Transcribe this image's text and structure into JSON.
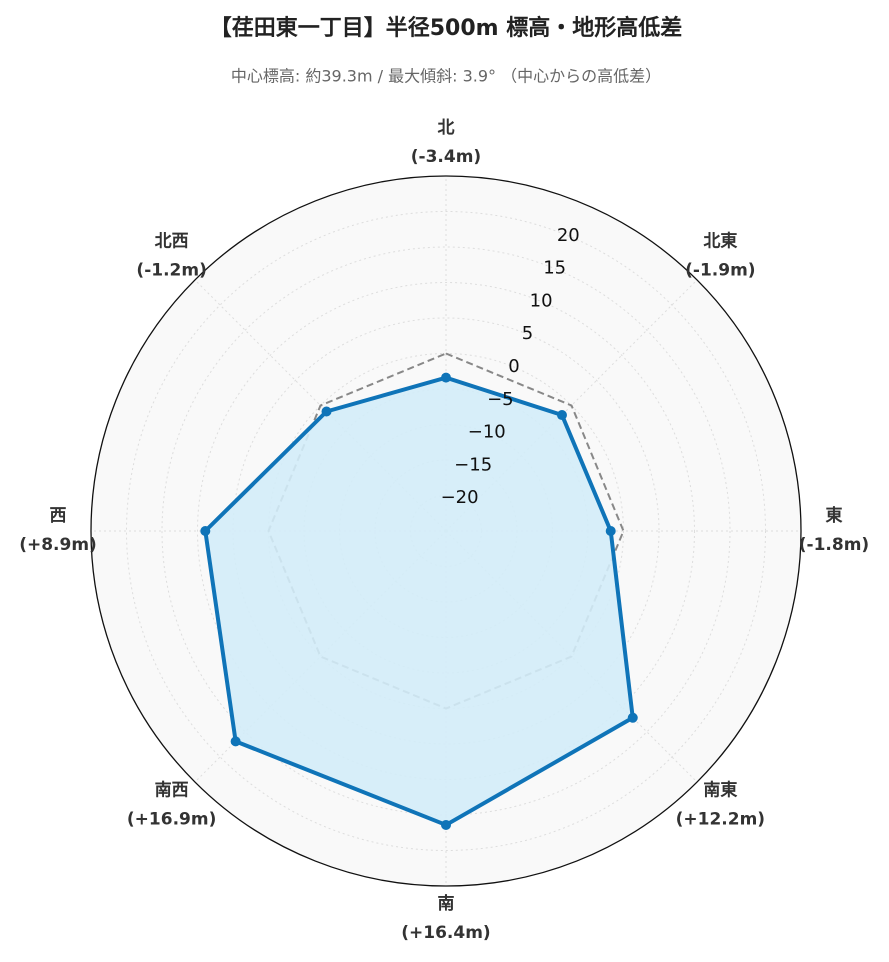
{
  "chart_data": {
    "type": "radar",
    "title": "【荏田東一丁目】半径500m 標高・地形高低差",
    "subtitle": "中心標高: 約39.3m / 最大傾斜: 3.9° （中心からの高低差）",
    "categories": [
      "北",
      "北東",
      "東",
      "南東",
      "南",
      "南西",
      "西",
      "北西"
    ],
    "values": [
      -3.4,
      -1.9,
      -1.8,
      12.2,
      16.4,
      16.9,
      8.9,
      -1.2
    ],
    "value_labels": [
      "(-3.4m)",
      "(-1.9m)",
      "(-1.8m)",
      "(+12.2m)",
      "(+16.4m)",
      "(+16.9m)",
      "(+8.9m)",
      "(-1.2m)"
    ],
    "color": "#0f74b8",
    "fill_color": "#d3ecf8",
    "reference_value": 0,
    "ylim": [
      -25,
      25
    ],
    "yticks": [
      {
        "value": -20,
        "label": "−20"
      },
      {
        "value": -15,
        "label": "−15"
      },
      {
        "value": -10,
        "label": "−10"
      },
      {
        "value": -5,
        "label": "−5"
      },
      0,
      5,
      10,
      15,
      20
    ],
    "grid": true
  }
}
